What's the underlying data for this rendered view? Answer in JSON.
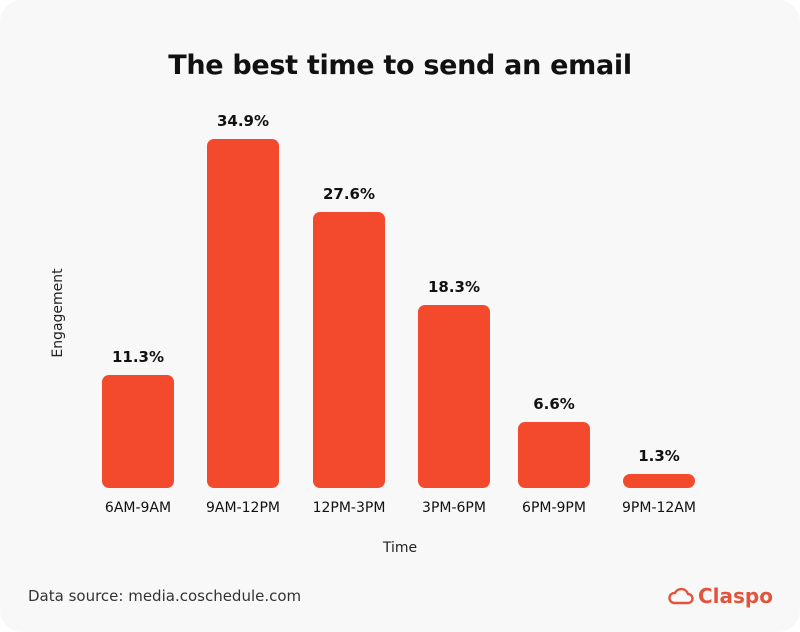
{
  "chart_data": {
    "type": "bar",
    "title": "The best time to send an email",
    "xlabel": "Time",
    "ylabel": "Engagement",
    "categories": [
      "6AM-9AM",
      "9AM-12PM",
      "12PM-3PM",
      "3PM-6PM",
      "6PM-9PM",
      "9PM-12AM"
    ],
    "values": [
      11.3,
      34.9,
      27.6,
      18.3,
      6.6,
      1.3
    ],
    "value_labels": [
      "11.3%",
      "34.9%",
      "27.6%",
      "18.3%",
      "6.6%",
      "1.3%"
    ],
    "unit": "%",
    "bar_color": "#f34a2d",
    "grid": false,
    "legend": null
  },
  "footer": {
    "source": "Data source: media.coschedule.com",
    "brand": "Claspo",
    "brand_icon": "cloud-icon",
    "brand_color": "#e2553c"
  }
}
